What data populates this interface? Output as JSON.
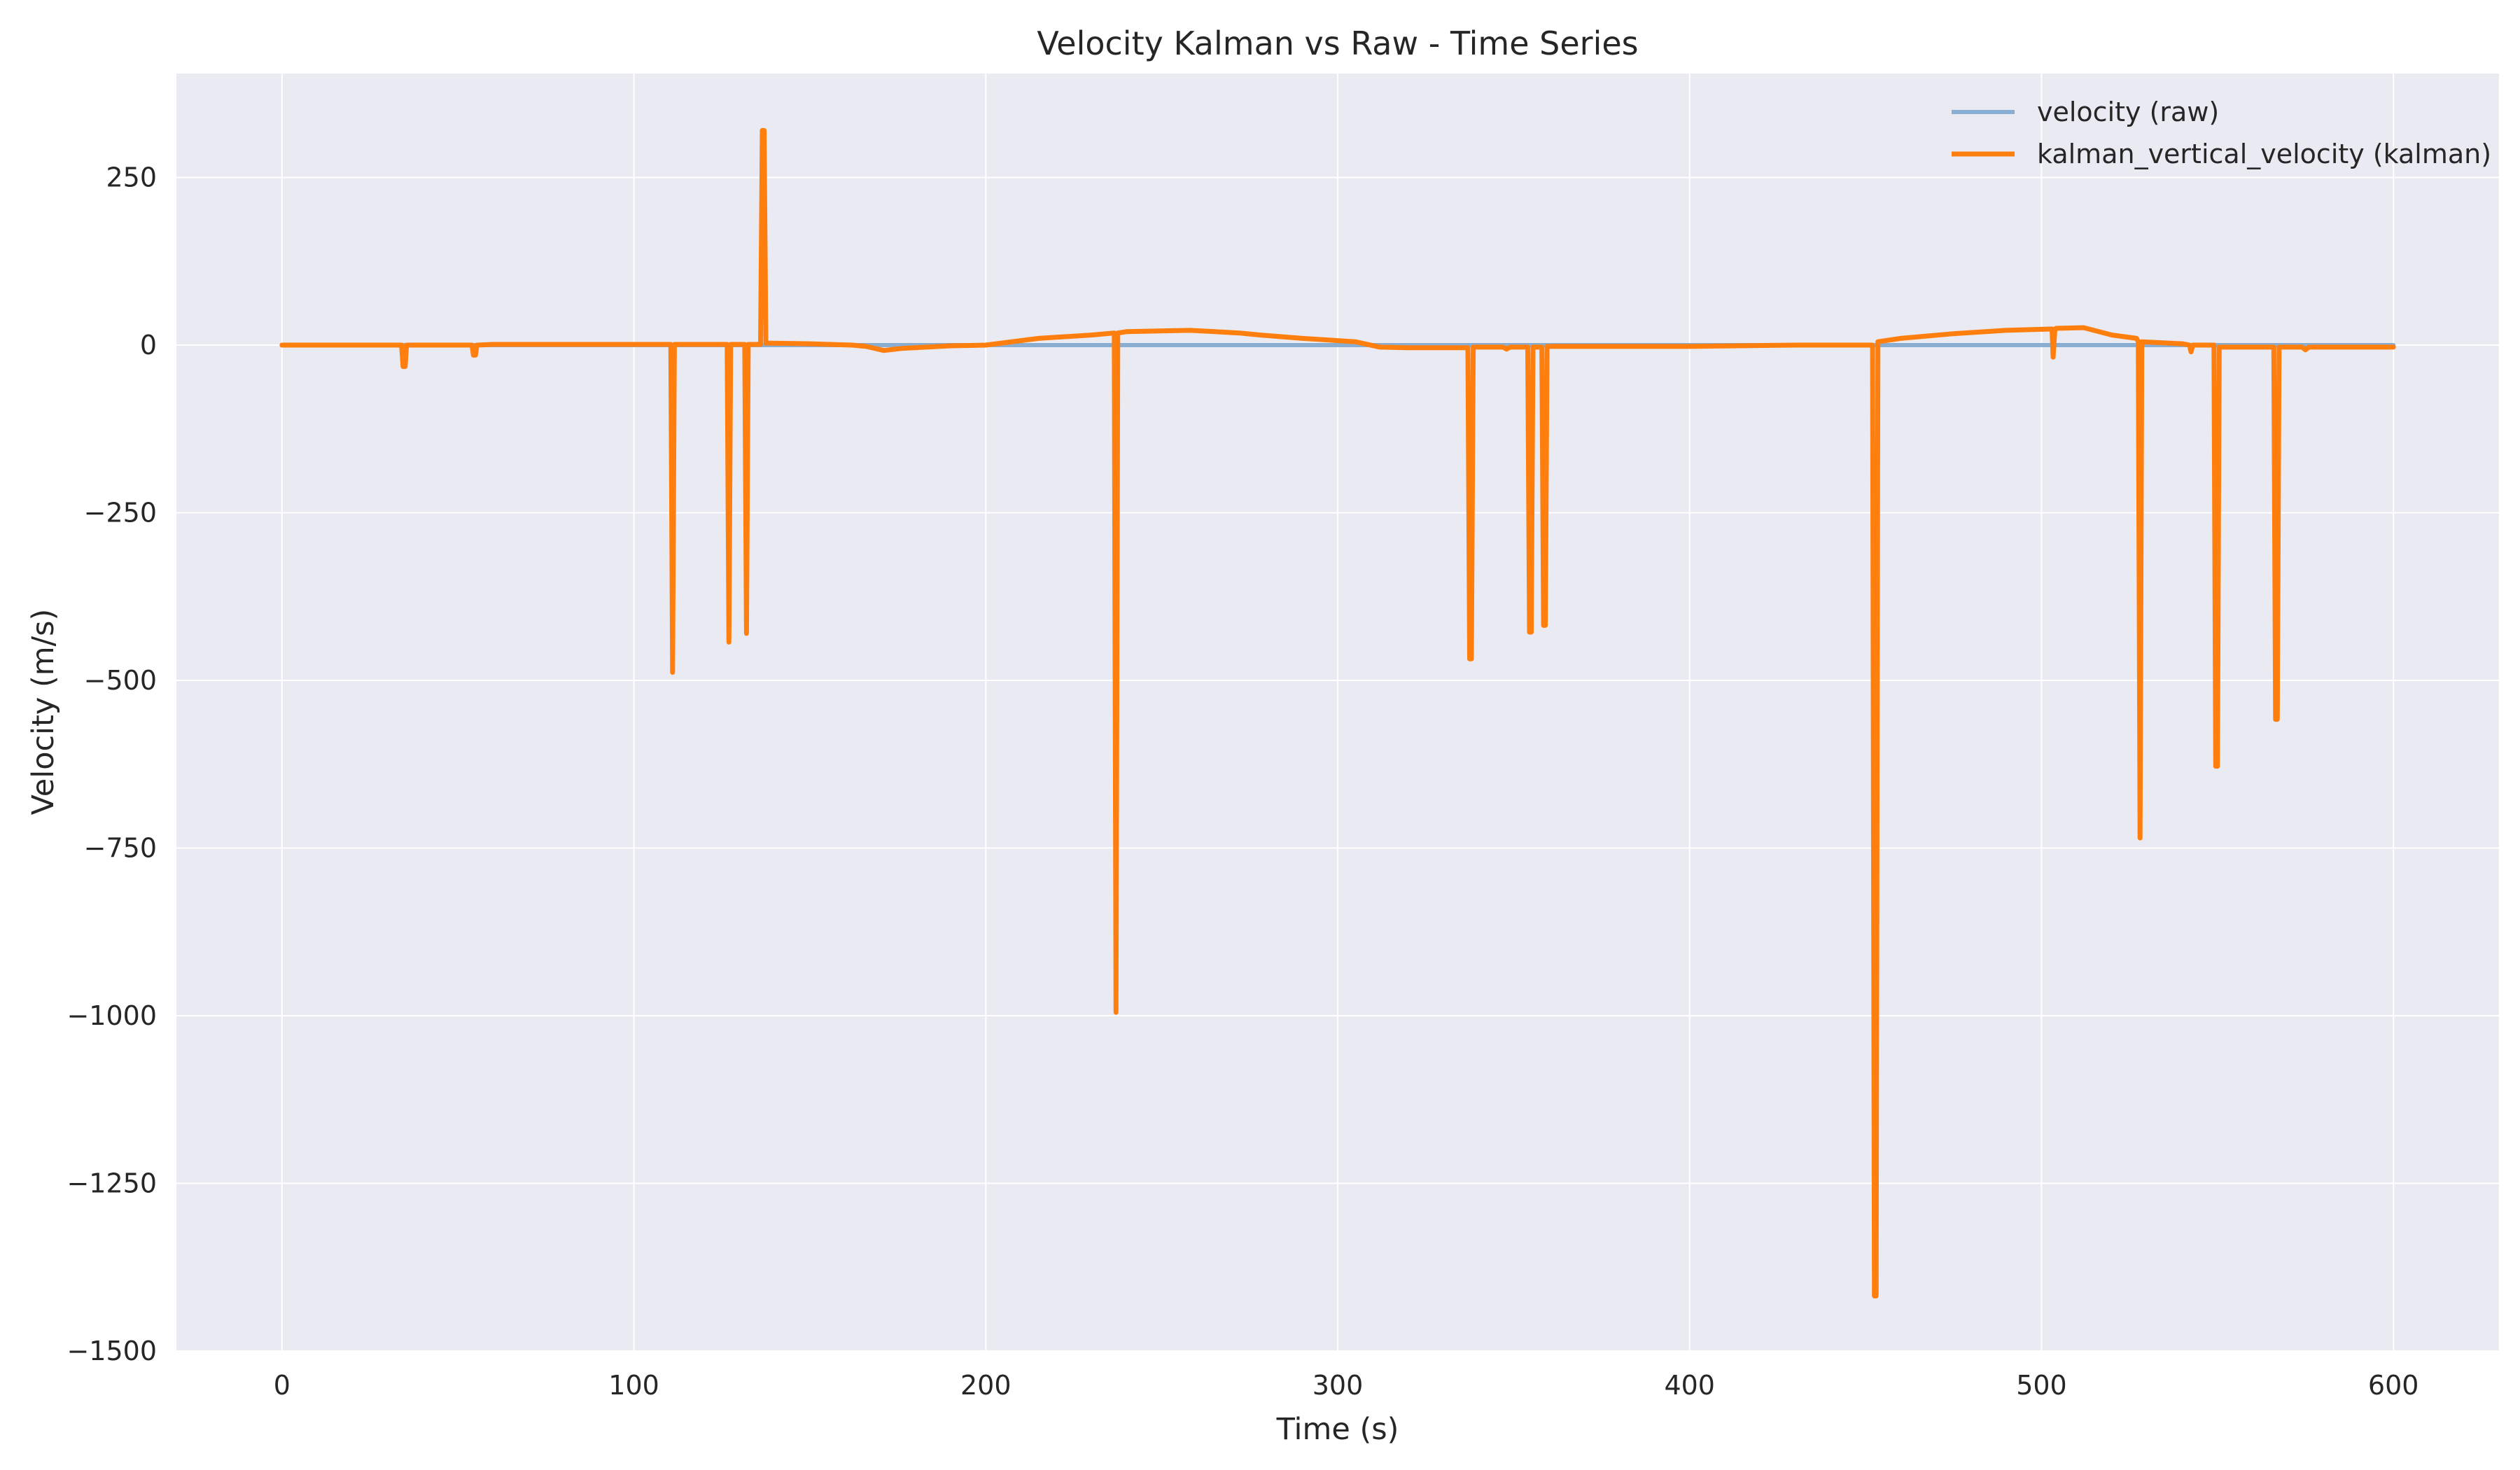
{
  "chart_data": {
    "type": "line",
    "title": "Velocity Kalman vs Raw - Time Series",
    "xlabel": "Time (s)",
    "ylabel": "Velocity (m/s)",
    "xlim": [
      -30,
      630
    ],
    "ylim": [
      -1500,
      405
    ],
    "xticks": [
      0,
      100,
      200,
      300,
      400,
      500,
      600
    ],
    "xtick_labels": [
      "0",
      "100",
      "200",
      "300",
      "400",
      "500",
      "600"
    ],
    "yticks": [
      250,
      0,
      -250,
      -500,
      -750,
      -1000,
      -1250,
      -1500
    ],
    "ytick_labels": [
      "250",
      "0",
      "−250",
      "−500",
      "−750",
      "−1000",
      "−1250",
      "−1500"
    ],
    "grid": true,
    "legend_position": "top-right",
    "background": "#eaeaf2",
    "series": [
      {
        "name": "velocity (raw)",
        "color": "#8aaed2",
        "x": [
          0,
          600
        ],
        "y": [
          0,
          0
        ]
      },
      {
        "name": "kalman_vertical_velocity (kalman)",
        "color": "#ff7f0e",
        "x": [
          0,
          34,
          34.4,
          35,
          35.4,
          54,
          54.4,
          55,
          55.4,
          60,
          100,
          110.5,
          111,
          111.5,
          126.5,
          127,
          127.5,
          131.5,
          132,
          132.5,
          136,
          136.5,
          137,
          137.5,
          150,
          162,
          166,
          171,
          176,
          190,
          200,
          215,
          230,
          236.5,
          237,
          237.5,
          240,
          258,
          265,
          272,
          278,
          290,
          305,
          312,
          320,
          337,
          337.5,
          338,
          338.5,
          347,
          348,
          349,
          354,
          354.5,
          355,
          355.5,
          358,
          358.5,
          359,
          359.5,
          400,
          430,
          452,
          452.5,
          453,
          453.5,
          460,
          475,
          490,
          503,
          503.3,
          503.8,
          504.2,
          512,
          520,
          527,
          527.5,
          528,
          528.5,
          540,
          542,
          542.5,
          543,
          549,
          549.5,
          550,
          550.5,
          560,
          566,
          566.5,
          567,
          567.5,
          574,
          575,
          576,
          600
        ],
        "y": [
          0,
          0,
          -32,
          -32,
          0,
          0,
          -15,
          -15,
          0,
          1,
          1,
          1,
          -488,
          1,
          1,
          -443,
          1,
          1,
          -430,
          1,
          1,
          320,
          320,
          3,
          2,
          0,
          -2,
          -8,
          -5,
          -1,
          0,
          10,
          15,
          18,
          -995,
          18,
          20,
          22,
          20,
          18,
          15,
          10,
          5,
          -3,
          -4,
          -4,
          -468,
          -468,
          -3,
          -3,
          -6,
          -3,
          -3,
          -428,
          -428,
          -3,
          -3,
          -418,
          -418,
          -2,
          -2,
          0,
          0,
          -1418,
          -1418,
          5,
          10,
          17,
          22,
          24,
          -18,
          24,
          25,
          26,
          15,
          10,
          5,
          -735,
          5,
          2,
          0,
          -10,
          0,
          0,
          -628,
          -628,
          -3,
          -3,
          -3,
          -558,
          -558,
          -3,
          -3,
          -7,
          -3,
          -3
        ]
      }
    ]
  }
}
